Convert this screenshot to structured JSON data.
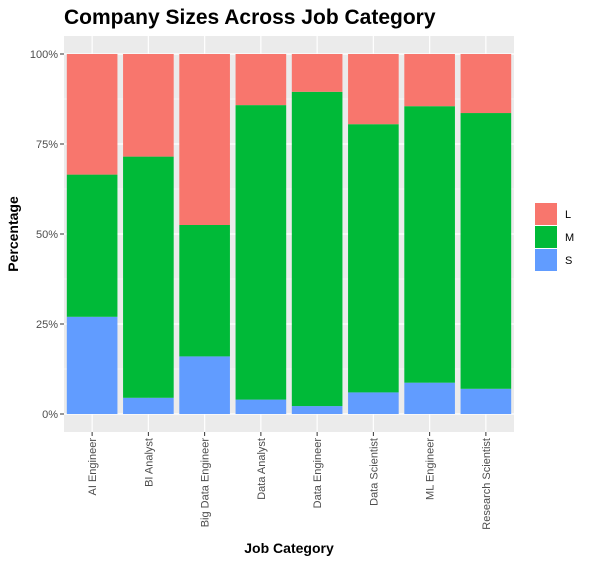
{
  "chart_data": {
    "type": "bar",
    "stacked": true,
    "title": "Company Sizes Across Job Category",
    "xlabel": "Job Category",
    "ylabel": "Percentage",
    "ylim": [
      0,
      1
    ],
    "y_ticks": [
      0,
      0.25,
      0.5,
      0.75,
      1.0
    ],
    "y_tick_labels": [
      "0%",
      "25%",
      "50%",
      "75%",
      "100%"
    ],
    "categories": [
      "AI Engineer",
      "BI Analyst",
      "Big Data Engineer",
      "Data Analyst",
      "Data Engineer",
      "Data Scientist",
      "ML Engineer",
      "Research Scientist"
    ],
    "series": [
      {
        "name": "S",
        "color": "#619CFF",
        "values": [
          0.27,
          0.045,
          0.16,
          0.04,
          0.022,
          0.06,
          0.087,
          0.07
        ]
      },
      {
        "name": "M",
        "color": "#00BA38",
        "values": [
          0.395,
          0.67,
          0.365,
          0.818,
          0.873,
          0.745,
          0.768,
          0.766
        ]
      },
      {
        "name": "L",
        "color": "#F8766D",
        "values": [
          0.335,
          0.285,
          0.475,
          0.142,
          0.105,
          0.195,
          0.145,
          0.164
        ]
      }
    ],
    "legend": {
      "placement": "right",
      "order": [
        "L",
        "M",
        "S"
      ]
    },
    "grid": true
  }
}
